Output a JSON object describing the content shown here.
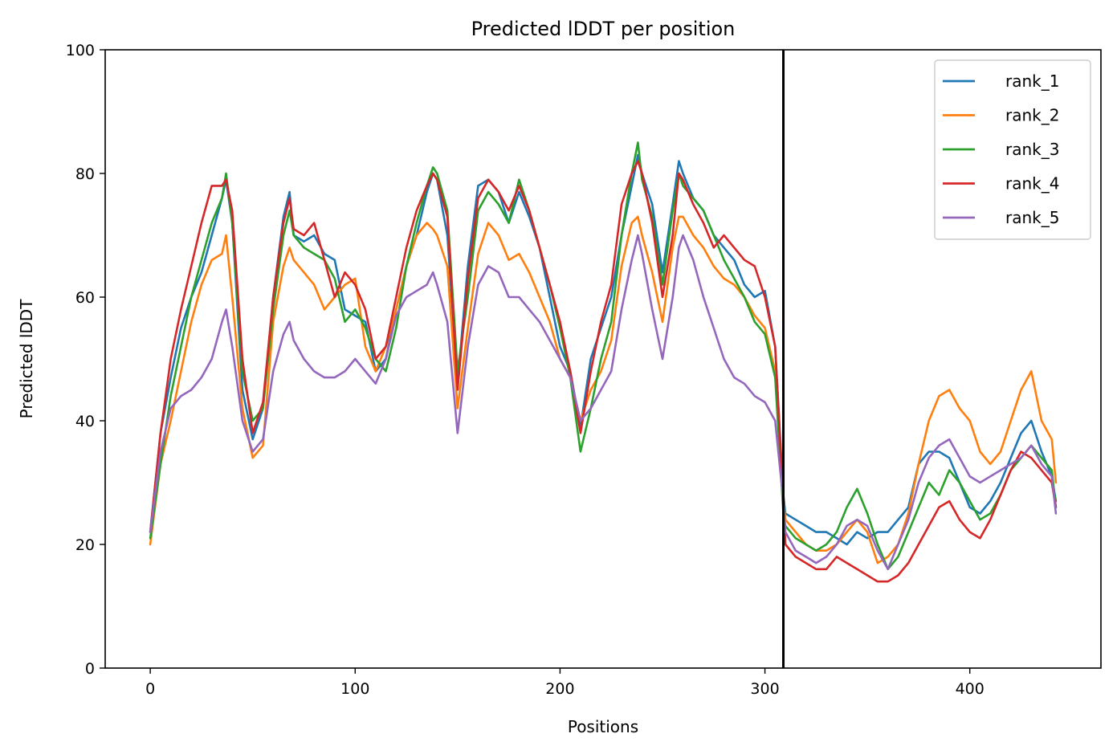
{
  "chart_data": {
    "type": "line",
    "title": "Predicted lDDT per position",
    "xlabel": "Positions",
    "ylabel": "Predicted lDDT",
    "xlim": [
      -22,
      464
    ],
    "ylim": [
      0,
      100
    ],
    "xticks": [
      0,
      100,
      200,
      300,
      400
    ],
    "yticks": [
      0,
      20,
      40,
      60,
      80,
      100
    ],
    "legend_position": "top-right",
    "grid": false,
    "vline_x": 309,
    "series": [
      {
        "name": "rank_1",
        "color": "#1f77b4",
        "x": [
          0,
          5,
          10,
          15,
          20,
          25,
          30,
          35,
          37,
          40,
          45,
          50,
          55,
          60,
          65,
          68,
          70,
          75,
          80,
          85,
          90,
          95,
          100,
          105,
          110,
          115,
          120,
          125,
          130,
          135,
          138,
          140,
          145,
          150,
          155,
          160,
          165,
          170,
          175,
          180,
          185,
          190,
          195,
          200,
          205,
          210,
          215,
          220,
          225,
          230,
          235,
          238,
          240,
          245,
          250,
          255,
          258,
          260,
          265,
          270,
          275,
          280,
          285,
          290,
          295,
          300,
          305,
          309,
          310,
          315,
          320,
          325,
          330,
          335,
          340,
          345,
          350,
          355,
          360,
          365,
          370,
          375,
          380,
          385,
          390,
          395,
          400,
          405,
          410,
          415,
          420,
          425,
          430,
          435,
          440,
          442
        ],
        "y": [
          22,
          38,
          47,
          55,
          60,
          64,
          70,
          76,
          79,
          72,
          45,
          37,
          42,
          60,
          73,
          77,
          70,
          69,
          70,
          67,
          66,
          58,
          57,
          56,
          48,
          50,
          58,
          65,
          70,
          77,
          80,
          79,
          70,
          46,
          65,
          78,
          79,
          77,
          72,
          77,
          73,
          68,
          60,
          52,
          48,
          39,
          50,
          55,
          60,
          70,
          78,
          83,
          80,
          75,
          64,
          75,
          82,
          80,
          76,
          74,
          70,
          68,
          66,
          62,
          60,
          61,
          52,
          28,
          25,
          24,
          23,
          22,
          22,
          21,
          20,
          22,
          21,
          22,
          22,
          24,
          26,
          33,
          35,
          35,
          34,
          30,
          26,
          25,
          27,
          30,
          34,
          38,
          40,
          35,
          31,
          27
        ]
      },
      {
        "name": "rank_2",
        "color": "#ff7f0e",
        "x": [
          0,
          5,
          10,
          15,
          20,
          25,
          30,
          35,
          37,
          40,
          45,
          50,
          55,
          60,
          65,
          68,
          70,
          75,
          80,
          85,
          90,
          95,
          100,
          105,
          110,
          115,
          120,
          125,
          130,
          135,
          138,
          140,
          145,
          150,
          155,
          160,
          165,
          170,
          175,
          180,
          185,
          190,
          195,
          200,
          205,
          210,
          215,
          220,
          225,
          230,
          235,
          238,
          240,
          245,
          250,
          255,
          258,
          260,
          265,
          270,
          275,
          280,
          285,
          290,
          295,
          300,
          305,
          309,
          310,
          315,
          320,
          325,
          330,
          335,
          340,
          345,
          350,
          355,
          360,
          365,
          370,
          375,
          380,
          385,
          390,
          395,
          400,
          405,
          410,
          415,
          420,
          425,
          430,
          435,
          440,
          442
        ],
        "y": [
          20,
          33,
          40,
          48,
          56,
          62,
          66,
          67,
          70,
          60,
          42,
          34,
          36,
          56,
          65,
          68,
          66,
          64,
          62,
          58,
          60,
          62,
          63,
          52,
          48,
          52,
          58,
          65,
          70,
          72,
          71,
          70,
          65,
          42,
          55,
          67,
          72,
          70,
          66,
          67,
          64,
          60,
          56,
          50,
          47,
          40,
          45,
          48,
          53,
          65,
          72,
          73,
          70,
          64,
          56,
          68,
          73,
          73,
          70,
          68,
          65,
          63,
          62,
          60,
          57,
          55,
          48,
          27,
          24,
          22,
          20,
          19,
          19,
          20,
          22,
          24,
          22,
          17,
          18,
          20,
          25,
          33,
          40,
          44,
          45,
          42,
          40,
          35,
          33,
          35,
          40,
          45,
          48,
          40,
          37,
          30
        ]
      },
      {
        "name": "rank_3",
        "color": "#2ca02c",
        "x": [
          0,
          5,
          10,
          15,
          20,
          25,
          30,
          35,
          37,
          40,
          45,
          50,
          55,
          60,
          65,
          68,
          70,
          75,
          80,
          85,
          90,
          95,
          100,
          105,
          110,
          115,
          120,
          125,
          130,
          135,
          138,
          140,
          145,
          150,
          155,
          160,
          165,
          170,
          175,
          180,
          185,
          190,
          195,
          200,
          205,
          210,
          215,
          220,
          225,
          230,
          235,
          238,
          240,
          245,
          250,
          255,
          258,
          260,
          265,
          270,
          275,
          280,
          285,
          290,
          295,
          300,
          305,
          309,
          310,
          315,
          320,
          325,
          330,
          335,
          340,
          345,
          350,
          355,
          360,
          365,
          370,
          375,
          380,
          385,
          390,
          395,
          400,
          405,
          410,
          415,
          420,
          425,
          430,
          435,
          440,
          442
        ],
        "y": [
          21,
          33,
          44,
          52,
          60,
          66,
          72,
          76,
          80,
          72,
          48,
          40,
          42,
          58,
          70,
          74,
          70,
          68,
          67,
          66,
          63,
          56,
          58,
          55,
          50,
          48,
          55,
          65,
          72,
          78,
          81,
          80,
          74,
          48,
          60,
          74,
          77,
          75,
          72,
          79,
          74,
          68,
          62,
          55,
          47,
          35,
          42,
          50,
          56,
          70,
          80,
          85,
          79,
          73,
          62,
          74,
          80,
          78,
          76,
          74,
          70,
          66,
          63,
          60,
          56,
          54,
          47,
          25,
          23,
          21,
          20,
          19,
          20,
          22,
          26,
          29,
          25,
          20,
          16,
          18,
          22,
          26,
          30,
          28,
          32,
          30,
          27,
          24,
          25,
          28,
          32,
          34,
          36,
          34,
          32,
          26
        ]
      },
      {
        "name": "rank_4",
        "color": "#d62728",
        "x": [
          0,
          5,
          10,
          15,
          20,
          25,
          30,
          35,
          37,
          40,
          45,
          50,
          55,
          60,
          65,
          68,
          70,
          75,
          80,
          85,
          90,
          95,
          100,
          105,
          110,
          115,
          120,
          125,
          130,
          135,
          138,
          140,
          145,
          150,
          155,
          160,
          165,
          170,
          175,
          180,
          185,
          190,
          195,
          200,
          205,
          210,
          215,
          220,
          225,
          230,
          235,
          238,
          240,
          245,
          250,
          255,
          258,
          260,
          265,
          270,
          275,
          280,
          285,
          290,
          295,
          300,
          305,
          309,
          310,
          315,
          320,
          325,
          330,
          335,
          340,
          345,
          350,
          355,
          360,
          365,
          370,
          375,
          380,
          385,
          390,
          395,
          400,
          405,
          410,
          415,
          420,
          425,
          430,
          435,
          440,
          442
        ],
        "y": [
          22,
          38,
          50,
          58,
          65,
          72,
          78,
          78,
          79,
          74,
          50,
          38,
          43,
          60,
          72,
          76,
          71,
          70,
          72,
          66,
          60,
          64,
          62,
          58,
          50,
          52,
          60,
          68,
          74,
          78,
          80,
          79,
          73,
          45,
          63,
          76,
          79,
          77,
          74,
          78,
          74,
          68,
          62,
          56,
          48,
          38,
          48,
          56,
          62,
          75,
          80,
          82,
          80,
          72,
          60,
          70,
          80,
          79,
          75,
          72,
          68,
          70,
          68,
          66,
          65,
          60,
          52,
          27,
          20,
          18,
          17,
          16,
          16,
          18,
          17,
          16,
          15,
          14,
          14,
          15,
          17,
          20,
          23,
          26,
          27,
          24,
          22,
          21,
          24,
          28,
          32,
          35,
          34,
          32,
          30,
          26
        ]
      },
      {
        "name": "rank_5",
        "color": "#9467bd",
        "x": [
          0,
          5,
          10,
          15,
          20,
          25,
          30,
          35,
          37,
          40,
          45,
          50,
          55,
          60,
          65,
          68,
          70,
          75,
          80,
          85,
          90,
          95,
          100,
          105,
          110,
          115,
          120,
          125,
          130,
          135,
          138,
          140,
          145,
          150,
          155,
          160,
          165,
          170,
          175,
          180,
          185,
          190,
          195,
          200,
          205,
          210,
          215,
          220,
          225,
          230,
          235,
          238,
          240,
          245,
          250,
          255,
          258,
          260,
          265,
          270,
          275,
          280,
          285,
          290,
          295,
          300,
          305,
          309,
          310,
          315,
          320,
          325,
          330,
          335,
          340,
          345,
          350,
          355,
          360,
          365,
          370,
          375,
          380,
          385,
          390,
          395,
          400,
          405,
          410,
          415,
          420,
          425,
          430,
          435,
          440,
          442
        ],
        "y": [
          22,
          35,
          42,
          44,
          45,
          47,
          50,
          56,
          58,
          52,
          40,
          35,
          37,
          48,
          54,
          56,
          53,
          50,
          48,
          47,
          47,
          48,
          50,
          48,
          46,
          50,
          57,
          60,
          61,
          62,
          64,
          62,
          56,
          38,
          52,
          62,
          65,
          64,
          60,
          60,
          58,
          56,
          53,
          50,
          47,
          40,
          42,
          45,
          48,
          58,
          66,
          70,
          67,
          58,
          50,
          60,
          68,
          70,
          66,
          60,
          55,
          50,
          47,
          46,
          44,
          43,
          40,
          27,
          22,
          19,
          18,
          17,
          18,
          20,
          23,
          24,
          23,
          19,
          16,
          20,
          24,
          30,
          34,
          36,
          37,
          34,
          31,
          30,
          31,
          32,
          33,
          34,
          36,
          33,
          31,
          25
        ]
      }
    ]
  }
}
